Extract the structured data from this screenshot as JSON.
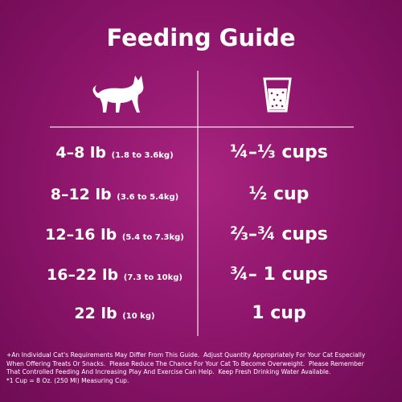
{
  "header": {
    "title": "Feeding Guide"
  },
  "table": {
    "rows": [
      {
        "weight": "4–8 lb",
        "metric": "(1.8 to 3.6kg)",
        "amount": "¼–⅓ cups"
      },
      {
        "weight": "8–12 lb",
        "metric": "(3.6 to 5.4kg)",
        "amount": "½ cup"
      },
      {
        "weight": "12–16 lb",
        "metric": "(5.4 to 7.3kg)",
        "amount": "⅔–¾ cups"
      },
      {
        "weight": "16–22 lb",
        "metric": "(7.3 to 10kg)",
        "amount": "¾– 1 cups"
      },
      {
        "weight": "22 lb",
        "metric": "(10 kg)",
        "amount": "1 cup"
      }
    ]
  },
  "footnote": {
    "lines": [
      "+An Individual Cat's Requirements May Differ From This Guide.  Adjust Quantity Appropriately For Your Cat Especially",
      "When Offering Treats Or Snacks.  Please Reduce The Chance For Your Cat To Become Overweight.  Please Remember",
      "That Controlled Feeding And Increasing Play And Exercise Can Help.  Keep Fresh Drinking Water Available.",
      "*1 Cup = 8 Oz. (250 Ml) Measuring Cup."
    ]
  }
}
